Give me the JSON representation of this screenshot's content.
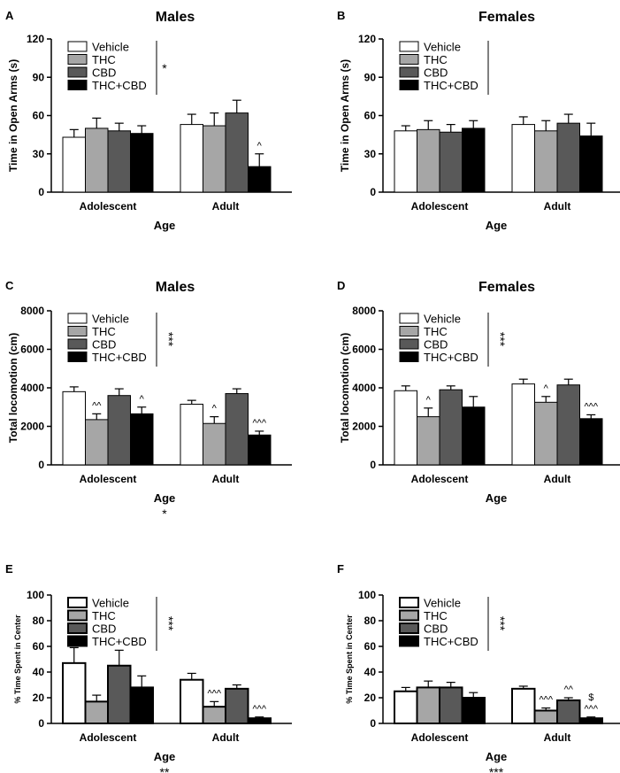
{
  "chart_data": [
    {
      "id": "A",
      "panel_label": "A",
      "title": "Males",
      "type": "bar",
      "ylabel": "Time in Open Arms (s)",
      "xlabel": "Age",
      "xlabel_sig": "",
      "ylim": [
        0,
        120
      ],
      "yticks": [
        0,
        30,
        60,
        90,
        120
      ],
      "categories": [
        "Adolescent",
        "Adult"
      ],
      "legend": {
        "position": "top-left",
        "sig": "*"
      },
      "series": [
        {
          "name": "Vehicle",
          "color": "#ffffff",
          "values": [
            43,
            53
          ],
          "errors": [
            6,
            8
          ],
          "sig": [
            "",
            ""
          ]
        },
        {
          "name": "THC",
          "color": "#a6a6a6",
          "values": [
            50,
            52
          ],
          "errors": [
            8,
            10
          ],
          "sig": [
            "",
            ""
          ]
        },
        {
          "name": "CBD",
          "color": "#595959",
          "values": [
            48,
            62
          ],
          "errors": [
            6,
            10
          ],
          "sig": [
            "",
            ""
          ]
        },
        {
          "name": "THC+CBD",
          "color": "#000000",
          "values": [
            46,
            20
          ],
          "errors": [
            6,
            10
          ],
          "sig": [
            "",
            "^"
          ]
        }
      ]
    },
    {
      "id": "B",
      "panel_label": "B",
      "title": "Females",
      "type": "bar",
      "ylabel": "Time in Open Arms (s)",
      "xlabel": "Age",
      "xlabel_sig": "",
      "ylim": [
        0,
        120
      ],
      "yticks": [
        0,
        30,
        60,
        90,
        120
      ],
      "categories": [
        "Adolescent",
        "Adult"
      ],
      "legend": {
        "position": "top-left",
        "sig": ""
      },
      "series": [
        {
          "name": "Vehicle",
          "color": "#ffffff",
          "values": [
            48,
            53
          ],
          "errors": [
            4,
            6
          ],
          "sig": [
            "",
            ""
          ]
        },
        {
          "name": "THC",
          "color": "#a6a6a6",
          "values": [
            49,
            48
          ],
          "errors": [
            7,
            8
          ],
          "sig": [
            "",
            ""
          ]
        },
        {
          "name": "CBD",
          "color": "#595959",
          "values": [
            47,
            54
          ],
          "errors": [
            6,
            7
          ],
          "sig": [
            "",
            ""
          ]
        },
        {
          "name": "THC+CBD",
          "color": "#000000",
          "values": [
            50,
            44
          ],
          "errors": [
            6,
            10
          ],
          "sig": [
            "",
            ""
          ]
        }
      ]
    },
    {
      "id": "C",
      "panel_label": "C",
      "title": "Males",
      "type": "bar",
      "ylabel": "Total locomotion (cm)",
      "xlabel": "Age",
      "xlabel_sig": "*",
      "ylim": [
        0,
        8000
      ],
      "yticks": [
        0,
        2000,
        4000,
        6000,
        8000
      ],
      "categories": [
        "Adolescent",
        "Adult"
      ],
      "legend": {
        "position": "top-left",
        "sig": "***"
      },
      "series": [
        {
          "name": "Vehicle",
          "color": "#ffffff",
          "values": [
            3800,
            3150
          ],
          "errors": [
            250,
            200
          ],
          "sig": [
            "",
            ""
          ]
        },
        {
          "name": "THC",
          "color": "#a6a6a6",
          "values": [
            2350,
            2150
          ],
          "errors": [
            300,
            350
          ],
          "sig": [
            "^^",
            "^"
          ]
        },
        {
          "name": "CBD",
          "color": "#595959",
          "values": [
            3600,
            3700
          ],
          "errors": [
            350,
            250
          ],
          "sig": [
            "",
            ""
          ]
        },
        {
          "name": "THC+CBD",
          "color": "#000000",
          "values": [
            2650,
            1550
          ],
          "errors": [
            350,
            200
          ],
          "sig": [
            "^",
            "^^^"
          ]
        }
      ]
    },
    {
      "id": "D",
      "panel_label": "D",
      "title": "Females",
      "type": "bar",
      "ylabel": "Total locomotion (cm)",
      "xlabel": "Age",
      "xlabel_sig": "",
      "ylim": [
        0,
        8000
      ],
      "yticks": [
        0,
        2000,
        4000,
        6000,
        8000
      ],
      "categories": [
        "Adolescent",
        "Adult"
      ],
      "legend": {
        "position": "top-left",
        "sig": "***"
      },
      "series": [
        {
          "name": "Vehicle",
          "color": "#ffffff",
          "values": [
            3850,
            4200
          ],
          "errors": [
            250,
            250
          ],
          "sig": [
            "",
            ""
          ]
        },
        {
          "name": "THC",
          "color": "#a6a6a6",
          "values": [
            2500,
            3250
          ],
          "errors": [
            450,
            300
          ],
          "sig": [
            "^",
            "^"
          ]
        },
        {
          "name": "CBD",
          "color": "#595959",
          "values": [
            3900,
            4150
          ],
          "errors": [
            200,
            300
          ],
          "sig": [
            "",
            ""
          ]
        },
        {
          "name": "THC+CBD",
          "color": "#000000",
          "values": [
            3000,
            2400
          ],
          "errors": [
            550,
            200
          ],
          "sig": [
            "",
            "^^^"
          ]
        }
      ]
    },
    {
      "id": "E",
      "panel_label": "E",
      "title": "",
      "type": "bar",
      "ylabel": "% Time Spent in Center",
      "xlabel": "Age",
      "xlabel_sig": "**",
      "ylim": [
        0,
        100
      ],
      "yticks": [
        0,
        20,
        40,
        60,
        80,
        100
      ],
      "categories": [
        "Adolescent",
        "Adult"
      ],
      "legend": {
        "position": "top-left",
        "sig": "***"
      },
      "series": [
        {
          "name": "Vehicle",
          "color": "#ffffff",
          "values": [
            47,
            34
          ],
          "errors": [
            12,
            5
          ],
          "sig": [
            "",
            ""
          ]
        },
        {
          "name": "THC",
          "color": "#a6a6a6",
          "values": [
            17,
            13
          ],
          "errors": [
            5,
            4
          ],
          "sig": [
            "",
            "^^^"
          ]
        },
        {
          "name": "CBD",
          "color": "#595959",
          "values": [
            45,
            27
          ],
          "errors": [
            12,
            3
          ],
          "sig": [
            "",
            ""
          ]
        },
        {
          "name": "THC+CBD",
          "color": "#000000",
          "values": [
            28,
            4
          ],
          "errors": [
            9,
            1
          ],
          "sig": [
            "",
            "^^^"
          ]
        }
      ]
    },
    {
      "id": "F",
      "panel_label": "F",
      "title": "",
      "type": "bar",
      "ylabel": "% Time Spent in Center",
      "xlabel": "Age",
      "xlabel_sig": "***",
      "ylim": [
        0,
        100
      ],
      "yticks": [
        0,
        20,
        40,
        60,
        80,
        100
      ],
      "categories": [
        "Adolescent",
        "Adult"
      ],
      "legend": {
        "position": "top-left",
        "sig": "***"
      },
      "series": [
        {
          "name": "Vehicle",
          "color": "#ffffff",
          "values": [
            25,
            27
          ],
          "errors": [
            3,
            2
          ],
          "sig": [
            "",
            ""
          ]
        },
        {
          "name": "THC",
          "color": "#a6a6a6",
          "values": [
            28,
            10
          ],
          "errors": [
            5,
            2
          ],
          "sig": [
            "",
            "^^^"
          ]
        },
        {
          "name": "CBD",
          "color": "#595959",
          "values": [
            28,
            18
          ],
          "errors": [
            4,
            2
          ],
          "sig": [
            "",
            "^^"
          ]
        },
        {
          "name": "THC+CBD",
          "color": "#000000",
          "values": [
            20,
            4
          ],
          "errors": [
            4,
            1
          ],
          "sig": [
            "",
            "$\n^^^"
          ]
        }
      ]
    }
  ]
}
